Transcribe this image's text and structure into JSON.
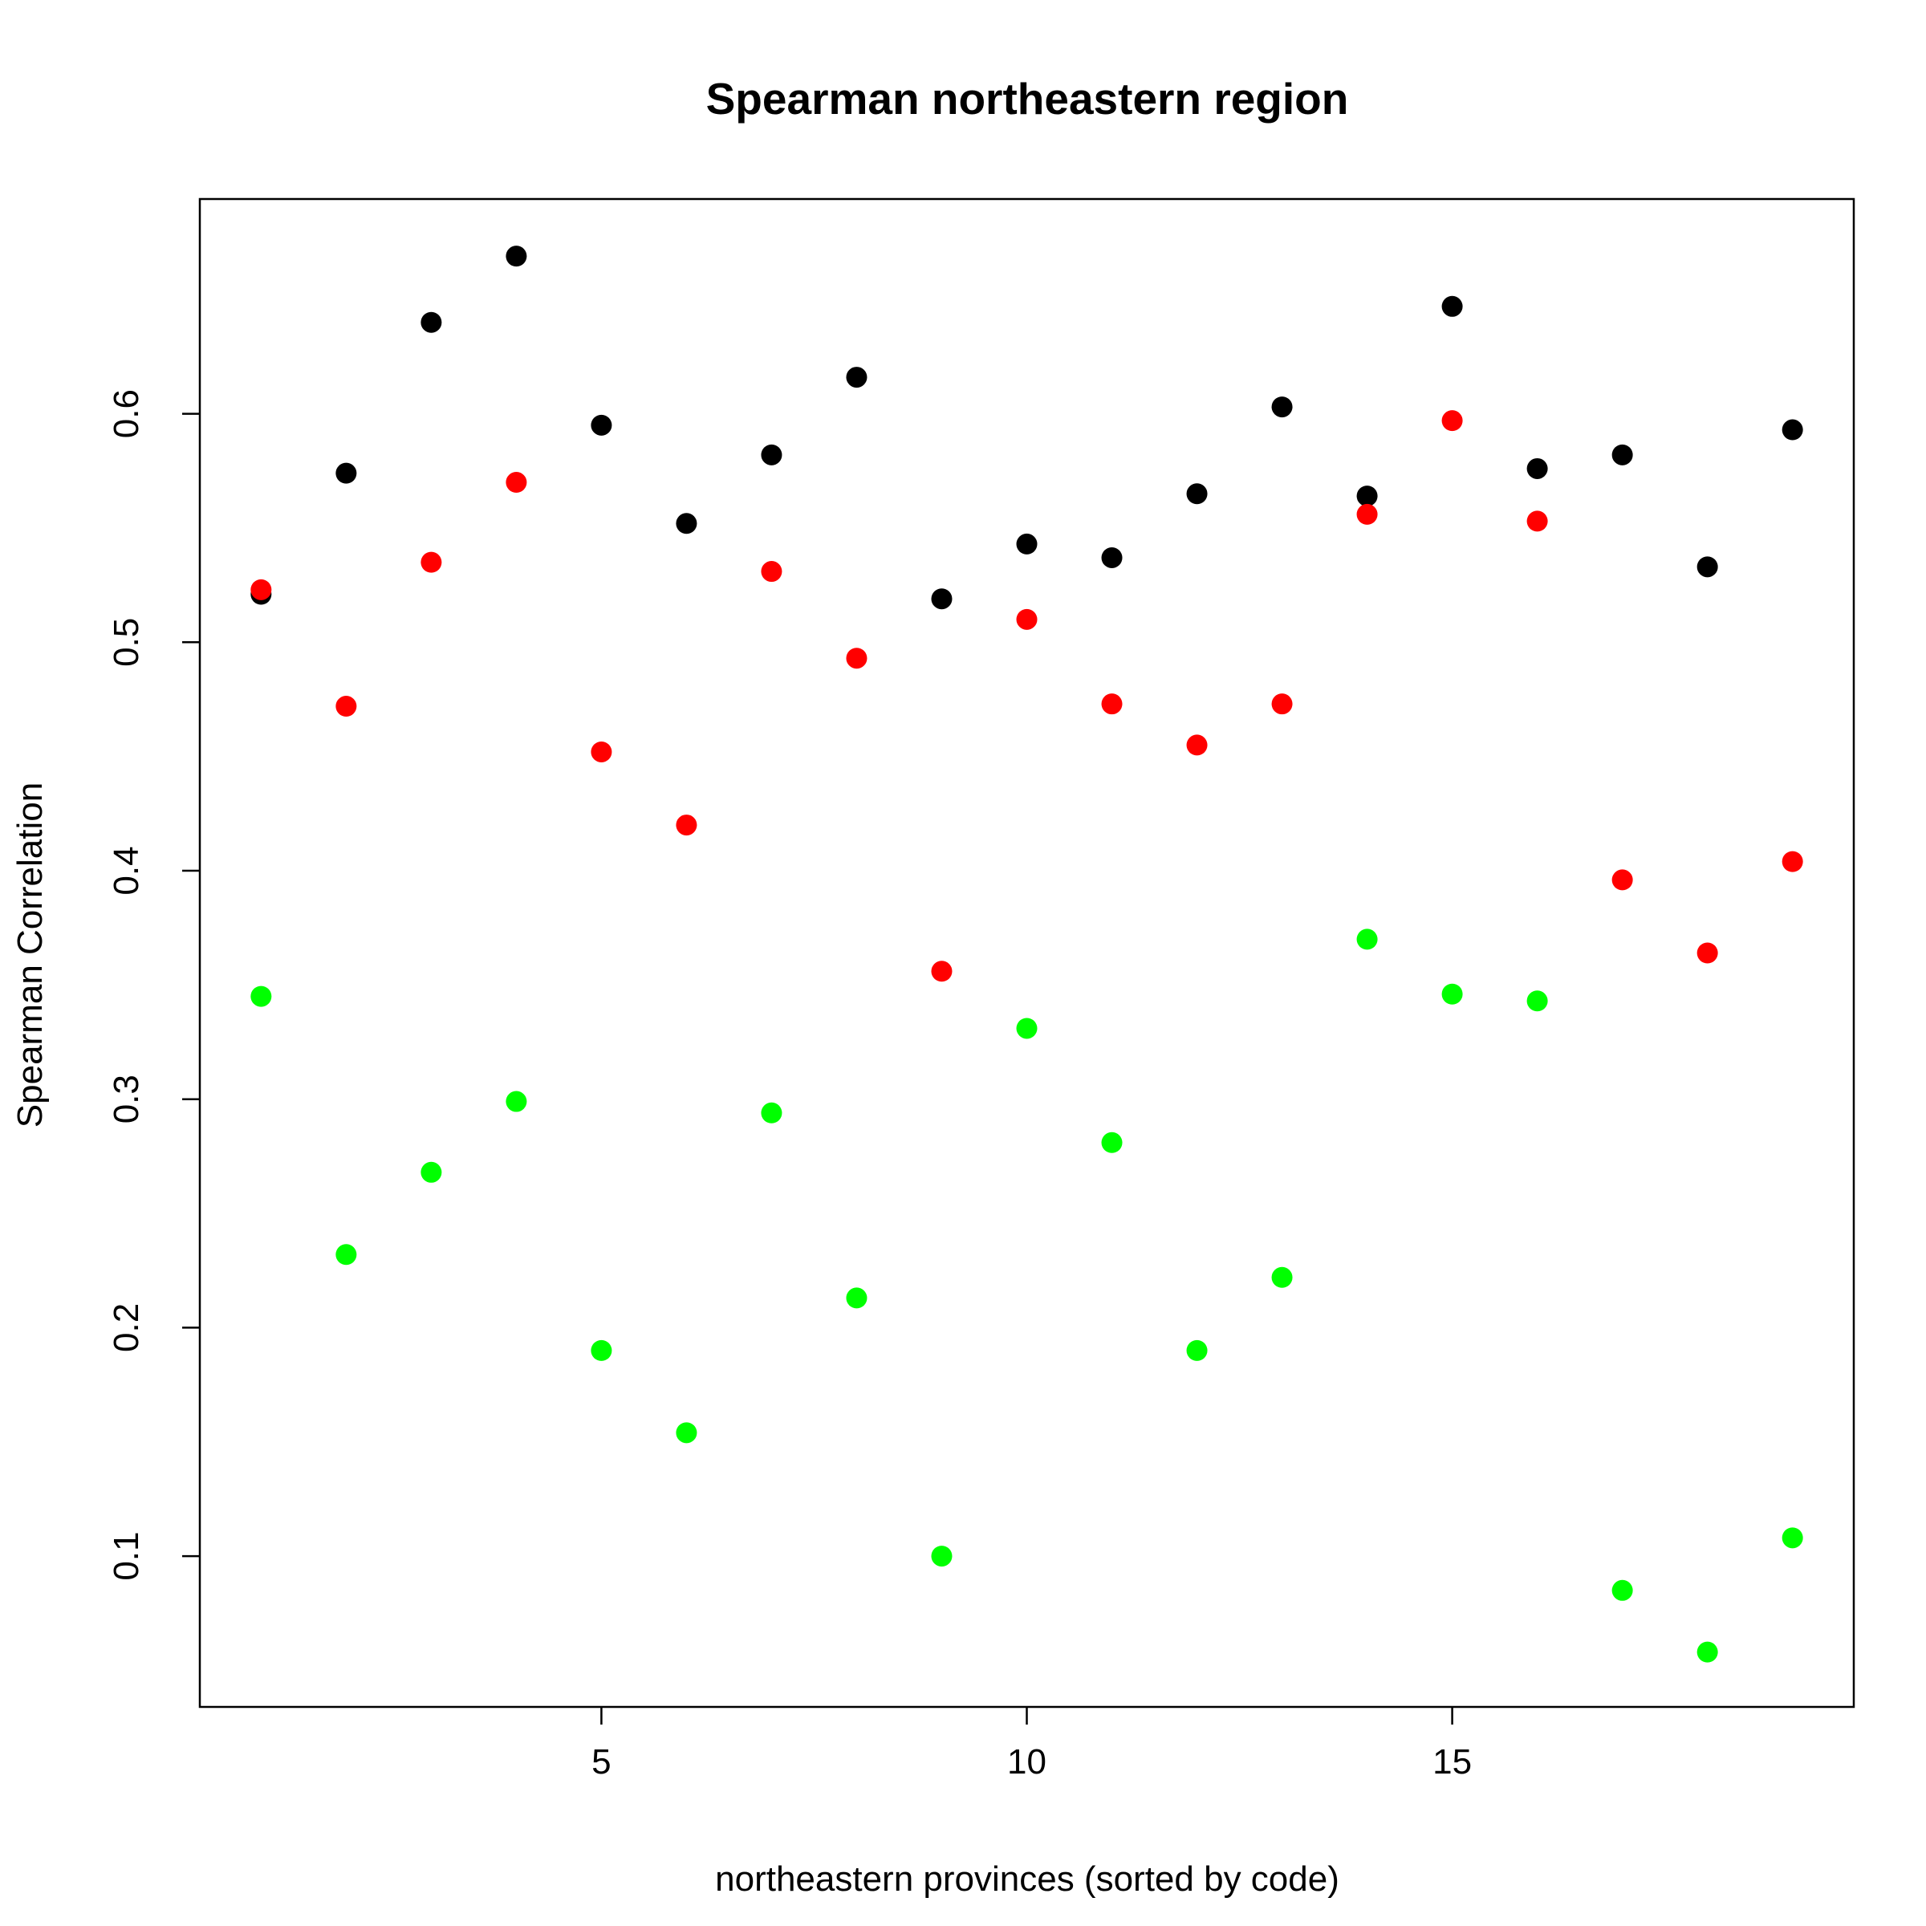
{
  "chart_data": {
    "type": "scatter",
    "title": "Spearman northeastern region",
    "xlabel": "northeastern provinces (sorted by code)",
    "ylabel": "Spearman Correlation",
    "xlim": [
      0.28,
      19.72
    ],
    "ylim": [
      0.034,
      0.694
    ],
    "x_ticks": [
      5,
      10,
      15
    ],
    "x_tick_labels": [
      "5",
      "10",
      "15"
    ],
    "y_ticks": [
      0.1,
      0.2,
      0.3,
      0.4,
      0.5,
      0.6
    ],
    "y_tick_labels": [
      "0.1",
      "0.2",
      "0.3",
      "0.4",
      "0.5",
      "0.6"
    ],
    "grid": false,
    "x": [
      1,
      2,
      3,
      4,
      5,
      6,
      7,
      8,
      9,
      10,
      11,
      12,
      13,
      14,
      15,
      16,
      17,
      18,
      19
    ],
    "series": [
      {
        "color": "#000000",
        "values": [
          0.521,
          0.574,
          0.64,
          0.669,
          0.595,
          0.552,
          0.582,
          0.616,
          0.519,
          0.543,
          0.537,
          0.565,
          0.603,
          0.564,
          0.647,
          0.576,
          0.582,
          0.533,
          0.593
        ]
      },
      {
        "color": "#ff0000",
        "values": [
          0.523,
          0.472,
          0.535,
          0.57,
          0.452,
          0.42,
          0.531,
          0.493,
          0.356,
          0.51,
          0.473,
          0.455,
          0.473,
          0.556,
          0.597,
          0.553,
          0.396,
          0.364,
          0.404
        ]
      },
      {
        "color": "#00ff00",
        "values": [
          0.345,
          0.232,
          0.268,
          0.299,
          0.19,
          0.154,
          0.294,
          0.213,
          0.1,
          0.331,
          0.281,
          0.19,
          0.222,
          0.37,
          0.346,
          0.343,
          0.085,
          0.058,
          0.108
        ]
      }
    ]
  }
}
